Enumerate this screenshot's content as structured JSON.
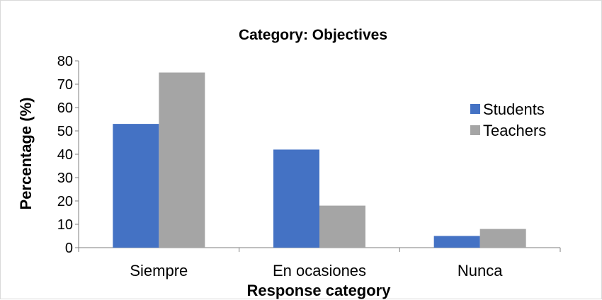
{
  "chart_data": {
    "type": "bar",
    "title": "Category: Objectives",
    "xlabel": "Response category",
    "ylabel": "Percentage (%)",
    "categories": [
      "Siempre",
      "En ocasiones",
      "Nunca"
    ],
    "series": [
      {
        "name": "Students",
        "values": [
          53,
          42,
          5
        ],
        "color": "#4472c4"
      },
      {
        "name": "Teachers",
        "values": [
          75,
          18,
          8
        ],
        "color": "#a5a5a5"
      }
    ],
    "ylim": [
      0,
      80
    ],
    "yticks": [
      "0",
      "10",
      "20",
      "30",
      "40",
      "50",
      "60",
      "70",
      "80"
    ],
    "grid": false,
    "legend": "right"
  }
}
